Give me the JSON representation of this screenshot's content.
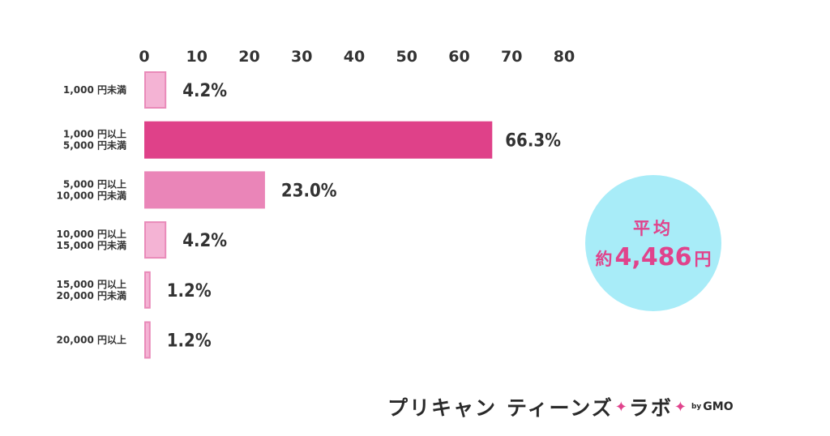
{
  "chart_data": {
    "type": "bar",
    "orientation": "horizontal",
    "x_ticks": [
      "0",
      "10",
      "20",
      "30",
      "40",
      "50",
      "60",
      "70",
      "80"
    ],
    "xlim": [
      0,
      80
    ],
    "categories": [
      [
        "1,000 円未満"
      ],
      [
        "1,000 円以上",
        "5,000 円未満"
      ],
      [
        "5,000 円以上",
        "10,000 円未満"
      ],
      [
        "10,000 円以上",
        "15,000 円未満"
      ],
      [
        "15,000 円以上",
        "20,000 円未満"
      ],
      [
        "20,000 円以上"
      ]
    ],
    "values": [
      4.2,
      66.3,
      23.0,
      4.2,
      1.2,
      1.2
    ],
    "value_labels": [
      "4.2%",
      "66.3%",
      "23.0%",
      "4.2%",
      "1.2%",
      "1.2%"
    ],
    "bar_colors": [
      "#f4b3d4",
      "#df4189",
      "#ea85b8",
      "#f4b3d4",
      "#f4b3d4",
      "#f4b3d4"
    ],
    "bar_borders": [
      "#e98ab9",
      "#df4189",
      "#ea85b8",
      "#e98ab9",
      "#e98ab9",
      "#e98ab9"
    ],
    "grid": false
  },
  "average_badge": {
    "title": "平均",
    "prefix": "約",
    "value": "4,486",
    "unit": "円",
    "text_color": "#e0438c",
    "background": "#a8ecf8"
  },
  "brand": {
    "part1": "プリキャン",
    "part2": "ティーンズ",
    "part3": "ラボ",
    "spark": "✦",
    "by": "by",
    "company": "GMO"
  }
}
